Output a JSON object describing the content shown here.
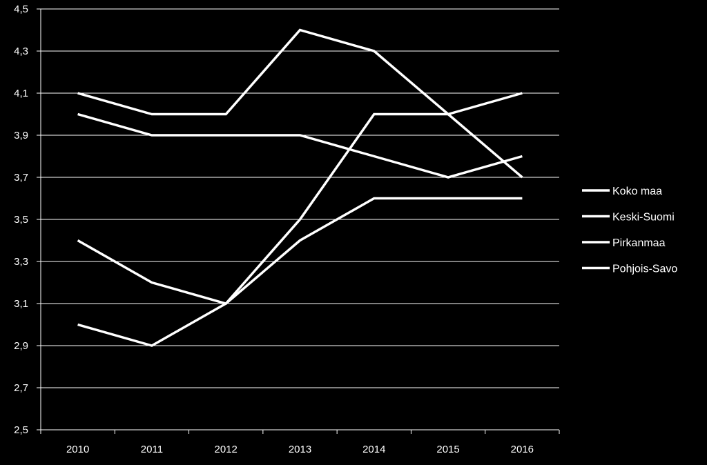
{
  "chart_data": {
    "type": "line",
    "title": "",
    "xlabel": "",
    "ylabel": "",
    "categories": [
      "2010",
      "2011",
      "2012",
      "2013",
      "2014",
      "2015",
      "2016"
    ],
    "ylim": [
      2.5,
      4.5
    ],
    "yticks": [
      "2,5",
      "2,7",
      "2,9",
      "3,1",
      "3,3",
      "3,5",
      "3,7",
      "3,9",
      "4,1",
      "4,3",
      "4,5"
    ],
    "grid": true,
    "legend_position": "right",
    "series": [
      {
        "name": "Koko maa",
        "values": [
          4.1,
          4.0,
          4.0,
          4.4,
          4.3,
          4.0,
          3.7
        ]
      },
      {
        "name": "Keski-Suomi",
        "values": [
          4.0,
          3.9,
          3.9,
          3.9,
          3.8,
          3.7,
          3.8
        ]
      },
      {
        "name": "Pirkanmaa",
        "values": [
          3.4,
          3.2,
          3.1,
          3.4,
          3.6,
          3.6,
          3.6
        ]
      },
      {
        "name": "Pohjois-Savo",
        "values": [
          3.0,
          2.9,
          3.1,
          3.5,
          4.0,
          4.0,
          4.1
        ]
      }
    ],
    "colors": {
      "background": "#000000",
      "line": "#ffffff",
      "text": "#ffffff"
    }
  }
}
